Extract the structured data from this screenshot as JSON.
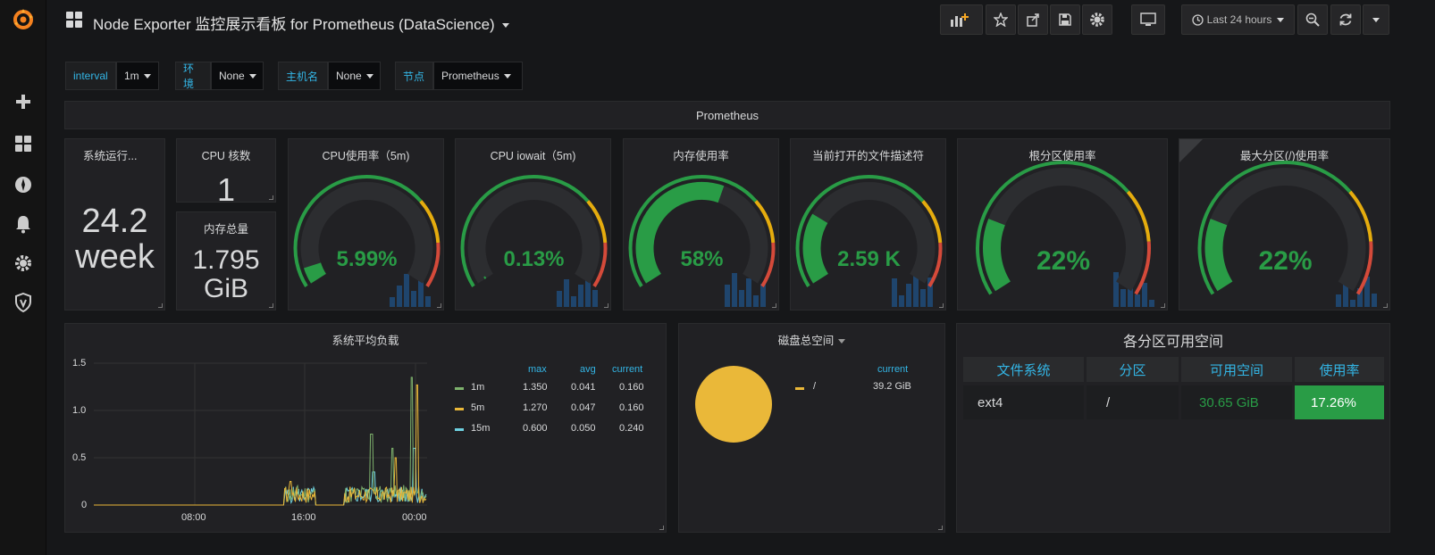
{
  "topbar": {
    "title": "Node Exporter 监控展示看板 for Prometheus (DataScience)",
    "time_range": "Last 24 hours"
  },
  "variables": [
    {
      "label": "interval",
      "value": "1m"
    },
    {
      "label": "环境",
      "value": "None"
    },
    {
      "label": "主机名",
      "value": "None"
    },
    {
      "label": "节点",
      "value": "Prometheus"
    }
  ],
  "row": {
    "title": "Prometheus"
  },
  "stats": {
    "uptime": {
      "title": "系统运行...",
      "value_line1": "24.2",
      "value_line2": "week"
    },
    "cpu_cores": {
      "title": "CPU 核数",
      "value": "1"
    },
    "mem_total": {
      "title": "内存总量",
      "value_line1": "1.795",
      "value_line2": "GiB"
    }
  },
  "gauges": [
    {
      "title": "CPU使用率（5m)",
      "value": "5.99%",
      "fraction": 0.06
    },
    {
      "title": "CPU iowait（5m)",
      "value": "0.13%",
      "fraction": 0.01
    },
    {
      "title": "内存使用率",
      "value": "58%",
      "fraction": 0.58
    },
    {
      "title": "当前打开的文件描述符",
      "value": "2.59 K",
      "fraction": 0.26
    },
    {
      "title": "根分区使用率",
      "value": "22%",
      "fraction": 0.22
    },
    {
      "title": "最大分区(/)使用率",
      "value": "22%",
      "fraction": 0.22
    }
  ],
  "colors": {
    "green": "#299c46",
    "orange": "#e5ac0e",
    "red": "#d44a3a",
    "accent": "#33b5e5",
    "load_1m": "#7eb26d",
    "load_5m": "#eab839",
    "load_15m": "#6ed0e0",
    "disk": "#eab839"
  },
  "load_panel": {
    "title": "系统平均负载",
    "yticks": [
      "1.5",
      "1.0",
      "0.5",
      "0"
    ],
    "xticks": [
      "08:00",
      "16:00",
      "00:00"
    ],
    "legend_headers": [
      "max",
      "avg",
      "current"
    ],
    "series": [
      {
        "name": "1m",
        "max": "1.350",
        "avg": "0.041",
        "current": "0.160"
      },
      {
        "name": "5m",
        "max": "1.270",
        "avg": "0.047",
        "current": "0.160"
      },
      {
        "name": "15m",
        "max": "0.600",
        "avg": "0.050",
        "current": "0.240"
      }
    ]
  },
  "disk_panel": {
    "title": "磁盘总空间",
    "legend_header": "current",
    "legend_name": "/",
    "legend_value": "39.2 GiB"
  },
  "partition_panel": {
    "title": "各分区可用空间",
    "headers": [
      "文件系统",
      "分区",
      "可用空间",
      "使用率"
    ],
    "row": [
      "ext4",
      "/",
      "30.65 GiB",
      "17.26%"
    ]
  }
}
